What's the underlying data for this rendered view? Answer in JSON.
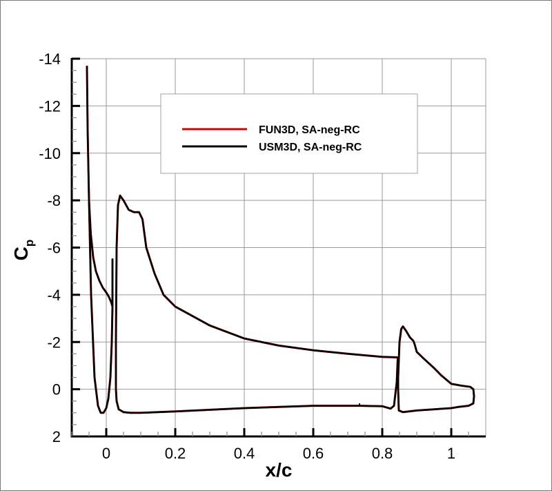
{
  "chart_data": {
    "type": "line",
    "title": "",
    "xlabel": "x/c",
    "ylabel": "C",
    "ylabel_subscript": "p",
    "xlim": [
      -0.1,
      1.1
    ],
    "ylim": [
      2,
      -14
    ],
    "y_inverted": true,
    "grid": true,
    "x_ticks": [
      0,
      0.2,
      0.4,
      0.6,
      0.8,
      1
    ],
    "x_tick_labels": [
      "0",
      "0.2",
      "0.4",
      "0.6",
      "0.8",
      "1"
    ],
    "y_ticks": [
      -14,
      -12,
      -10,
      -8,
      -6,
      -4,
      -2,
      0,
      2
    ],
    "y_tick_labels": [
      "-14",
      "-12",
      "-10",
      "-8",
      "-6",
      "-4",
      "-2",
      "0",
      "2"
    ],
    "legend": {
      "position": "upper center",
      "entries": [
        {
          "label": "FUN3D, SA-neg-RC",
          "color": "#d40000"
        },
        {
          "label": "USM3D, SA-neg-RC",
          "color": "#000000"
        }
      ]
    },
    "series": [
      {
        "name": "FUN3D, SA-neg-RC",
        "color": "#d40000",
        "segments": [
          {
            "element": "slat",
            "x": [
              -0.056,
              -0.054,
              -0.05,
              -0.045,
              -0.038,
              -0.03,
              -0.02,
              -0.01,
              0.0,
              0.008,
              0.014,
              0.018,
              0.018,
              0.018,
              0.016,
              0.012,
              0.006,
              0.0,
              -0.008,
              -0.016,
              -0.024,
              -0.034,
              -0.044,
              -0.05,
              -0.054,
              -0.056
            ],
            "y": [
              -13.7,
              -11.0,
              -8.0,
              -6.6,
              -5.6,
              -5.0,
              -4.6,
              -4.3,
              -4.1,
              -3.9,
              -3.7,
              -3.5,
              -5.5,
              -3.5,
              -2.0,
              -0.5,
              0.4,
              0.8,
              1.0,
              1.0,
              0.7,
              -0.5,
              -4.0,
              -8.0,
              -11.0,
              -13.7
            ]
          },
          {
            "element": "main",
            "x": [
              0.845,
              0.8,
              0.7,
              0.6,
              0.5,
              0.4,
              0.3,
              0.2,
              0.166,
              0.14,
              0.116,
              0.105,
              0.095,
              0.08,
              0.065,
              0.05,
              0.04,
              0.034,
              0.03,
              0.028,
              0.028,
              0.03,
              0.036,
              0.05,
              0.07,
              0.1,
              0.2,
              0.3,
              0.4,
              0.5,
              0.6,
              0.7,
              0.734,
              0.8,
              0.824,
              0.834,
              0.842,
              0.845
            ],
            "y": [
              -1.35,
              -1.37,
              -1.5,
              -1.65,
              -1.85,
              -2.15,
              -2.7,
              -3.5,
              -4.0,
              -4.9,
              -6.0,
              -7.2,
              -7.5,
              -7.5,
              -7.6,
              -8.0,
              -8.2,
              -7.8,
              -6.0,
              -2.0,
              0.0,
              0.5,
              0.85,
              0.97,
              1.0,
              1.0,
              0.94,
              0.87,
              0.8,
              0.75,
              0.7,
              0.7,
              0.7,
              0.72,
              0.82,
              0.7,
              -0.3,
              -1.35
            ]
          },
          {
            "element": "flap",
            "x": [
              0.846,
              0.85,
              0.855,
              0.86,
              0.87,
              0.88,
              0.89,
              0.894,
              0.9,
              0.92,
              0.95,
              0.97,
              1.0,
              1.03,
              1.055,
              1.064,
              1.066,
              1.064,
              1.05,
              1.02,
              1.0,
              0.95,
              0.9,
              0.86,
              0.848,
              0.846,
              0.846
            ],
            "y": [
              -0.5,
              -2.0,
              -2.55,
              -2.66,
              -2.45,
              -2.2,
              -2.05,
              -1.9,
              -1.58,
              -1.3,
              -0.9,
              -0.6,
              -0.23,
              -0.15,
              -0.1,
              0.0,
              0.3,
              0.6,
              0.7,
              0.75,
              0.8,
              0.85,
              0.9,
              0.97,
              0.9,
              0.0,
              -0.5
            ]
          }
        ]
      },
      {
        "name": "USM3D, SA-neg-RC",
        "color": "#000000",
        "note": "overlays FUN3D curve almost exactly",
        "same_as": "FUN3D, SA-neg-RC"
      }
    ]
  }
}
